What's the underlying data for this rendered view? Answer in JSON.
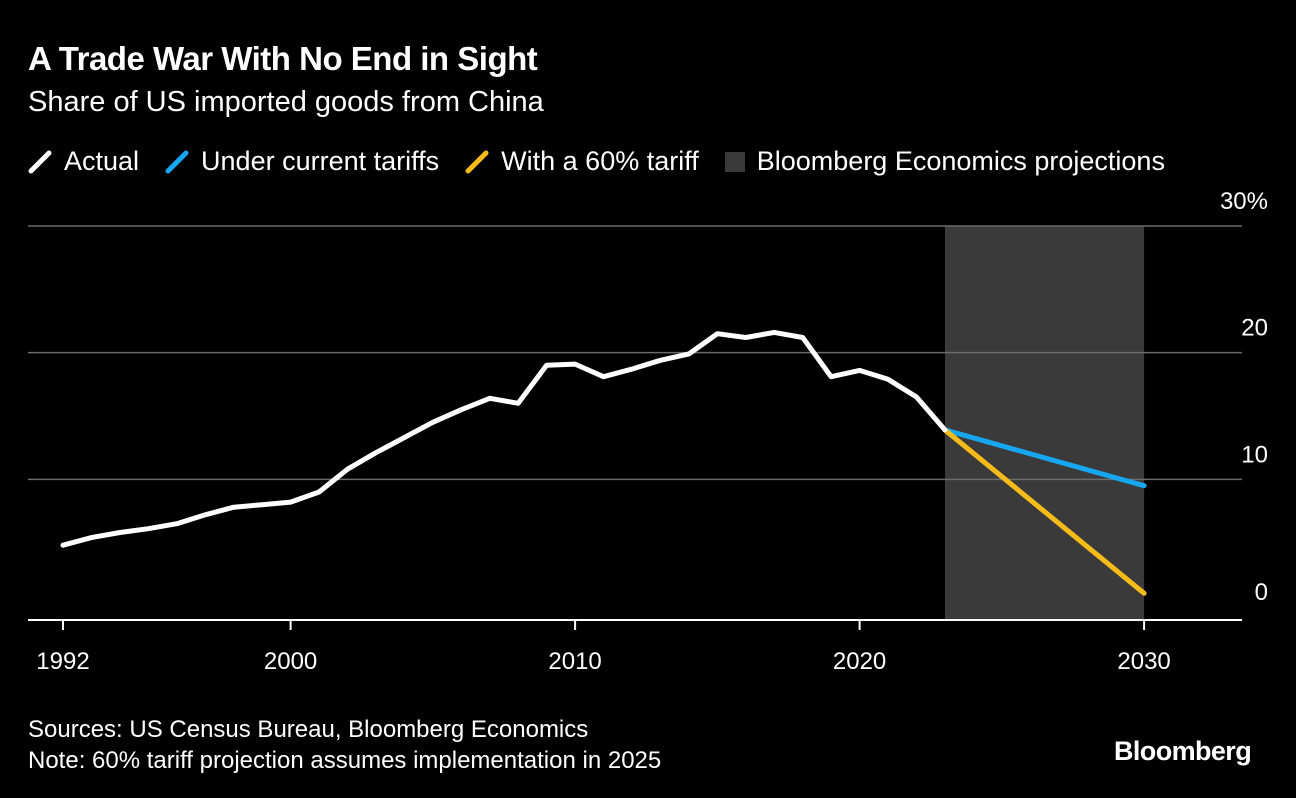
{
  "header": {
    "title": "A Trade War With No End in Sight",
    "subtitle": "Share of US imported goods from China"
  },
  "legend": [
    {
      "label": "Actual",
      "color": "#ffffff",
      "kind": "line"
    },
    {
      "label": "Under current tariffs",
      "color": "#17a6f0",
      "kind": "line"
    },
    {
      "label": "With a 60% tariff",
      "color": "#f5bc19",
      "kind": "line"
    },
    {
      "label": "Bloomberg Economics projections",
      "color": "#3a3a3a",
      "kind": "box"
    }
  ],
  "chart_data": {
    "type": "line",
    "title": "A Trade War With No End in Sight",
    "subtitle": "Share of US imported goods from China",
    "xlabel": "",
    "ylabel": "",
    "xlim": [
      1991,
      2034
    ],
    "ylim": [
      0,
      30
    ],
    "x_ticks": [
      {
        "value": 1992,
        "label": "1992"
      },
      {
        "value": 2000,
        "label": "2000"
      },
      {
        "value": 2010,
        "label": "2010"
      },
      {
        "value": 2020,
        "label": "2020"
      },
      {
        "value": 2030,
        "label": "2030"
      }
    ],
    "y_ticks": [
      {
        "value": 0,
        "label": "0"
      },
      {
        "value": 10,
        "label": "10"
      },
      {
        "value": 20,
        "label": "20"
      },
      {
        "value": 30,
        "label": "30%"
      }
    ],
    "grid": true,
    "shaded_region": {
      "x_start": 2023,
      "x_end": 2030,
      "label": "Bloomberg Economics projections",
      "color": "#3a3a3a"
    },
    "series": [
      {
        "name": "Actual",
        "color": "#ffffff",
        "x": [
          1992,
          1993,
          1994,
          1995,
          1996,
          1997,
          1998,
          1999,
          2000,
          2001,
          2002,
          2003,
          2004,
          2005,
          2006,
          2007,
          2008,
          2009,
          2010,
          2011,
          2012,
          2013,
          2014,
          2015,
          2016,
          2017,
          2018,
          2019,
          2020,
          2021,
          2022,
          2023
        ],
        "values": [
          4.8,
          5.4,
          5.8,
          6.1,
          6.5,
          7.2,
          7.8,
          8.0,
          8.2,
          9.0,
          10.8,
          12.1,
          13.3,
          14.5,
          15.5,
          16.4,
          16.0,
          19.0,
          19.1,
          18.1,
          18.7,
          19.4,
          19.9,
          21.5,
          21.2,
          21.6,
          21.2,
          18.1,
          18.6,
          17.9,
          16.5,
          13.9
        ]
      },
      {
        "name": "Under current tariffs",
        "color": "#17a6f0",
        "x": [
          2023,
          2030
        ],
        "values": [
          13.9,
          9.5
        ]
      },
      {
        "name": "With a 60% tariff",
        "color": "#f5bc19",
        "x": [
          2023,
          2030
        ],
        "values": [
          13.9,
          1.0
        ]
      }
    ]
  },
  "footer": {
    "sources": "Sources: US Census Bureau, Bloomberg Economics",
    "note": "Note: 60% tariff projection assumes implementation in 2025"
  },
  "brand": "Bloomberg"
}
